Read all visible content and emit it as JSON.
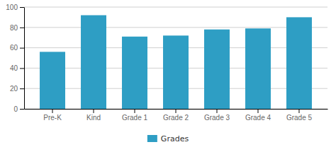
{
  "chart_data": {
    "type": "bar",
    "categories": [
      "Pre-K",
      "Kind",
      "Grade 1",
      "Grade 2",
      "Grade 3",
      "Grade 4",
      "Grade 5"
    ],
    "series": [
      {
        "name": "Grades",
        "color": "#2E9EC4",
        "values": [
          56,
          92,
          71,
          72,
          78,
          79,
          90
        ]
      }
    ],
    "ylim": [
      0,
      100
    ],
    "yticks": [
      0,
      20,
      40,
      60,
      80,
      100
    ],
    "grid": true,
    "legend": "bottom"
  }
}
